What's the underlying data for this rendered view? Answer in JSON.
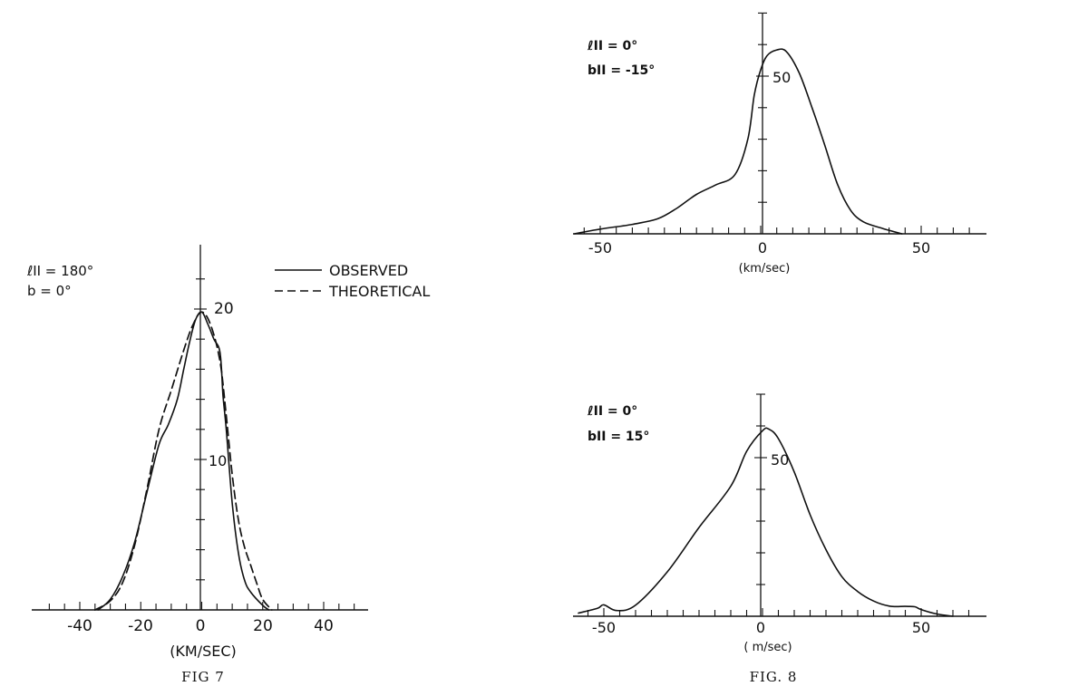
{
  "chart_data": [
    {
      "type": "line",
      "title": "",
      "xlabel": "(KM/SEC)",
      "ylabel": "",
      "xlim": [
        -55,
        55
      ],
      "ylim": [
        0,
        24
      ],
      "xticks": [
        "-40",
        "-20",
        "0",
        "20",
        "40"
      ],
      "yticks": [
        "10",
        "20"
      ],
      "annotations": [
        "ℓII = 180°",
        "b = 0°"
      ],
      "caption": "FIG 7",
      "legend": "top-right",
      "series": [
        {
          "name": "OBSERVED",
          "style": "solid",
          "x": [
            -34,
            -30,
            -26,
            -22,
            -18,
            -14,
            -11,
            -8,
            -6,
            -4,
            -2,
            0,
            2,
            4,
            6,
            7,
            8,
            10,
            12,
            14,
            16,
            20,
            22
          ],
          "y": [
            0,
            0.7,
            2.2,
            4.5,
            7.8,
            11.0,
            12.3,
            14.0,
            15.9,
            17.8,
            19.3,
            19.8,
            19.0,
            18.0,
            17.1,
            14.2,
            12.1,
            7.1,
            3.8,
            2.0,
            1.2,
            0.3,
            0
          ]
        },
        {
          "name": "THEORETICAL",
          "style": "dashed",
          "x": [
            -35,
            -30,
            -26,
            -22,
            -18,
            -14,
            -10,
            -6,
            -3,
            0,
            3,
            6,
            8,
            10,
            12,
            14,
            16,
            18,
            20,
            23
          ],
          "y": [
            0,
            0.6,
            1.8,
            4.3,
            8.0,
            12.0,
            14.6,
            17.2,
            18.9,
            19.8,
            18.9,
            16.5,
            13.0,
            9.0,
            6.0,
            4.2,
            3.0,
            1.8,
            0.7,
            0
          ]
        }
      ]
    },
    {
      "type": "line",
      "title": "",
      "xlabel": "(km/sec)",
      "ylabel": "",
      "xlim": [
        -58,
        68
      ],
      "ylim": [
        0,
        70
      ],
      "xticks": [
        "-50",
        "0",
        "50"
      ],
      "yticks": [
        "50"
      ],
      "annotations": [
        "ℓII = 0°",
        "bII = -15°"
      ],
      "series": [
        {
          "style": "solid",
          "x": [
            -58,
            -50,
            -40,
            -32,
            -26,
            -20,
            -14,
            -8,
            -4,
            -2,
            0,
            2,
            5,
            8,
            12,
            16,
            20,
            24,
            28,
            32,
            38,
            44
          ],
          "y": [
            0,
            1.5,
            3,
            4.8,
            8.2,
            12.5,
            15.5,
            18.8,
            30,
            44,
            52,
            56.5,
            58.3,
            57.8,
            51,
            40,
            28,
            15.5,
            7.5,
            3.8,
            1.7,
            0
          ]
        }
      ]
    },
    {
      "type": "line",
      "title": "",
      "xlabel": "( m/sec)",
      "ylabel": "",
      "xlim": [
        -58,
        68
      ],
      "ylim": [
        0,
        70
      ],
      "xticks": [
        "-50",
        "0",
        "50"
      ],
      "yticks": [
        "50"
      ],
      "annotations": [
        "ℓII = 0°",
        "bII = 15°"
      ],
      "caption": "FIG. 8",
      "series": [
        {
          "style": "solid",
          "x": [
            -58,
            -52,
            -50,
            -46,
            -40,
            -30,
            -20,
            -10,
            -5,
            0,
            2,
            5,
            10,
            15,
            20,
            25,
            30,
            35,
            40,
            45,
            48,
            50,
            55,
            60
          ],
          "y": [
            1,
            2.5,
            3.6,
            1.8,
            3.5,
            14,
            28,
            41,
            52,
            58.5,
            59,
            56,
            45.5,
            32,
            21,
            12.5,
            7.8,
            4.8,
            3.2,
            3.1,
            3.0,
            2.1,
            0.7,
            0
          ]
        }
      ]
    }
  ]
}
